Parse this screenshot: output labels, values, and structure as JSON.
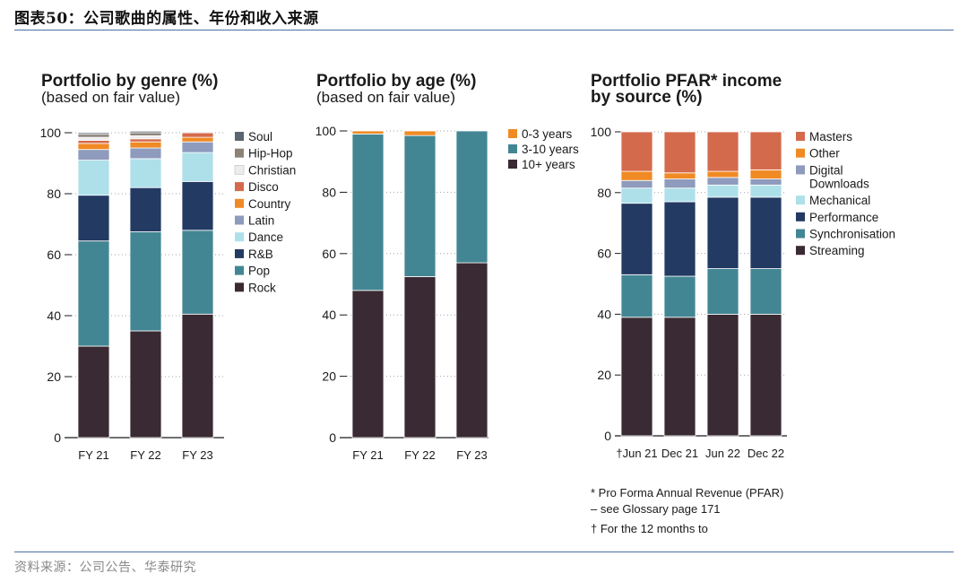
{
  "header": {
    "title": "图表50：公司歌曲的属性、年份和收入来源"
  },
  "footer": {
    "source": "资料来源：公司公告、华泰研究"
  },
  "chart_data": [
    {
      "type": "bar",
      "stacked": true,
      "title": "Portfolio by genre (%)",
      "subtitle": "(based on fair value)",
      "categories": [
        "FY 21",
        "FY 22",
        "FY 23"
      ],
      "ylim": [
        0,
        100
      ],
      "yticks": [
        0,
        20,
        40,
        60,
        80,
        100
      ],
      "legend_position": "right",
      "series": [
        {
          "name": "Rock",
          "color": "#3a2a33",
          "values": [
            30,
            35,
            40.5
          ]
        },
        {
          "name": "Pop",
          "color": "#438693",
          "values": [
            34.5,
            32.5,
            27.5
          ]
        },
        {
          "name": "R&B",
          "color": "#233a63",
          "values": [
            15,
            14.5,
            16
          ]
        },
        {
          "name": "Dance",
          "color": "#aee0ea",
          "values": [
            11.5,
            9.5,
            9.5
          ]
        },
        {
          "name": "Latin",
          "color": "#8e9bbd",
          "values": [
            3.5,
            3.5,
            3.5
          ]
        },
        {
          "name": "Country",
          "color": "#f08a24",
          "values": [
            2,
            2,
            1.5
          ]
        },
        {
          "name": "Disco",
          "color": "#d46a4c",
          "values": [
            1,
            1,
            1.5
          ]
        },
        {
          "name": "Christian",
          "color": "#ececec",
          "values": [
            1,
            1,
            0.5
          ]
        },
        {
          "name": "Hip-Hop",
          "color": "#8c8378",
          "values": [
            1,
            1,
            0
          ]
        },
        {
          "name": "Soul",
          "color": "#5c6570",
          "values": [
            0.5,
            0.5,
            0
          ]
        }
      ]
    },
    {
      "type": "bar",
      "stacked": true,
      "title": "Portfolio by age (%)",
      "subtitle": "(based on fair value)",
      "categories": [
        "FY 21",
        "FY 22",
        "FY 23"
      ],
      "ylim": [
        0,
        100
      ],
      "yticks": [
        0,
        20,
        40,
        60,
        80,
        100
      ],
      "legend_position": "right",
      "series": [
        {
          "name": "10+ years",
          "color": "#3a2a33",
          "values": [
            48,
            52.5,
            57
          ]
        },
        {
          "name": "3-10 years",
          "color": "#438693",
          "values": [
            51,
            46,
            43
          ]
        },
        {
          "name": "0-3 years",
          "color": "#f08a24",
          "values": [
            1,
            1.5,
            0
          ]
        }
      ]
    },
    {
      "type": "bar",
      "stacked": true,
      "title": "Portfolio PFAR* income",
      "subtitle": "by source (%)",
      "categories": [
        "†Jun 21",
        "Dec 21",
        "Jun 22",
        "Dec 22"
      ],
      "ylim": [
        0,
        100
      ],
      "yticks": [
        0,
        20,
        40,
        60,
        80,
        100
      ],
      "legend_position": "right",
      "series": [
        {
          "name": "Streaming",
          "color": "#3a2a33",
          "values": [
            39,
            39,
            40,
            40
          ]
        },
        {
          "name": "Synchronisation",
          "color": "#438693",
          "values": [
            14,
            13.5,
            15,
            15
          ]
        },
        {
          "name": "Performance",
          "color": "#233a63",
          "values": [
            23.5,
            24.5,
            23.5,
            23.5
          ]
        },
        {
          "name": "Mechanical",
          "color": "#aee0ea",
          "values": [
            5,
            4.5,
            4,
            4
          ]
        },
        {
          "name": "Digital Downloads",
          "name_lines": [
            "Digital",
            "Downloads"
          ],
          "color": "#8e9bbd",
          "values": [
            2.5,
            3,
            2.5,
            2
          ]
        },
        {
          "name": "Other",
          "color": "#f08a24",
          "values": [
            3,
            2,
            2,
            3
          ]
        },
        {
          "name": "Masters",
          "color": "#d46a4c",
          "values": [
            13,
            13.5,
            13,
            12.5
          ]
        }
      ],
      "notes": [
        "* Pro Forma Annual Revenue (PFAR)",
        "– see Glossary page 171",
        "† For the 12 months to"
      ]
    }
  ]
}
